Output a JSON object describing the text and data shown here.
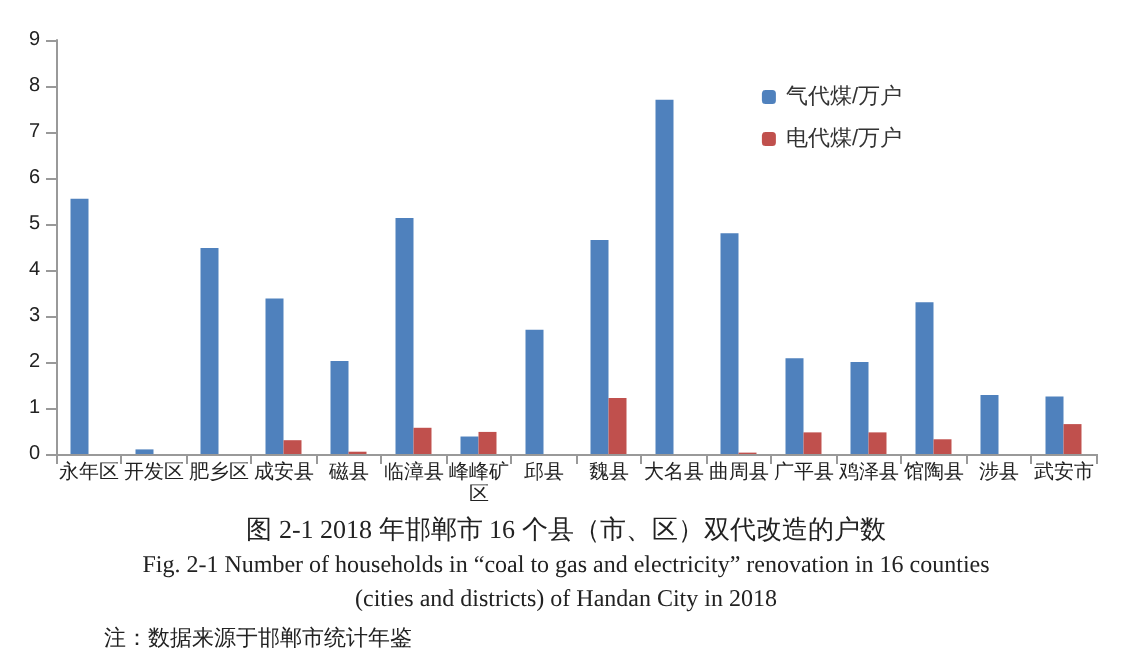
{
  "chart_data": {
    "type": "bar",
    "title": "图 2-1 2018 年邯郸市 16 个县（市、区）双代改造的户数",
    "subtitle": "Fig. 2-1 Number of households in “coal to gas and electricity” renovation in 16 counties\n(cities and districts) of Handan City in 2018",
    "annotations": [
      "注：数据来源于邯郸市统计年鉴"
    ],
    "categories": [
      "永年区",
      "开发区",
      "肥乡区",
      "成安县",
      "磁县",
      "临漳县",
      "峰峰矿区",
      "邱县",
      "魏县",
      "大名县",
      "曲周县",
      "广平县",
      "鸡泽县",
      "馆陶县",
      "涉县",
      "武安市"
    ],
    "series": [
      {
        "name": "气代煤/万户",
        "color": "#4f81bd",
        "values": [
          5.55,
          0.1,
          4.48,
          3.38,
          2.02,
          5.13,
          0.38,
          2.7,
          4.65,
          7.7,
          4.8,
          2.08,
          2.0,
          3.3,
          1.28,
          1.25
        ]
      },
      {
        "name": "电代煤/万户",
        "color": "#c0504d",
        "values": [
          0,
          0,
          0,
          0.3,
          0.05,
          0.57,
          0.48,
          0,
          1.22,
          0,
          0.03,
          0.47,
          0.47,
          0.32,
          0,
          0.65
        ]
      }
    ],
    "ylim": [
      0,
      9
    ],
    "yticks": [
      0,
      1,
      2,
      3,
      4,
      5,
      6,
      7,
      8,
      9
    ],
    "grid": false,
    "legend": "top right"
  }
}
